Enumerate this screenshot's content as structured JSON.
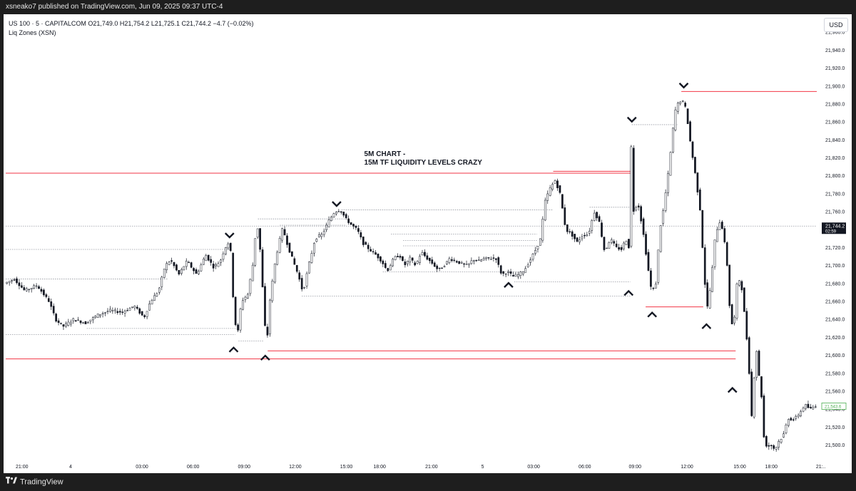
{
  "header": {
    "published": "xsneako7 published on TradingView.com, Jun 09, 2025 09:37 UTC-4"
  },
  "legend": {
    "symbol_line": "US 100 · 5 · CAPITALCOM  O21,749.0  H21,754.2  L21,725.1  C21,744.2  −4.7 (−0.02%)",
    "indicator": "Liq Zones (XSN)"
  },
  "currency_button": "USD",
  "footer": {
    "brand": "TradingView"
  },
  "colors": {
    "candle": "#131722",
    "liquidity_line": "#f23645",
    "dotted_level": "#9598a1",
    "price_tag_bg": "#131722",
    "last_tag_border": "#4caf50",
    "last_tag_text": "#4caf50"
  },
  "chart_data": {
    "type": "candlestick",
    "symbol": "US 100",
    "timeframe": "5",
    "exchange": "CAPITALCOM",
    "ylim": [
      21483,
      21980
    ],
    "y_ticks": [
      21500,
      21520,
      21540,
      21560,
      21580,
      21600,
      21620,
      21640,
      21660,
      21680,
      21700,
      21720,
      21740,
      21760,
      21780,
      21800,
      21820,
      21840,
      21860,
      21880,
      21900,
      21920,
      21940,
      21960
    ],
    "y_tick_labels": [
      "21,500.0",
      "21,520.0",
      "21,540.0",
      "21,560.0",
      "21,580.0",
      "21,600.0",
      "21,620.0",
      "21,640.0",
      "21,660.0",
      "21,680.0",
      "21,700.0",
      "21,720.0",
      "21,740.0",
      "21,760.0",
      "21,780.0",
      "21,800.0",
      "21,820.0",
      "21,840.0",
      "21,860.0",
      "21,880.0",
      "21,900.0",
      "21,920.0",
      "21,940.0",
      "21,960.0"
    ],
    "x_ticks": [
      {
        "label": "21:00",
        "t": 0.02
      },
      {
        "label": "4",
        "t": 0.08
      },
      {
        "label": "03:00",
        "t": 0.168
      },
      {
        "label": "06:00",
        "t": 0.231
      },
      {
        "label": "09:00",
        "t": 0.294
      },
      {
        "label": "12:00",
        "t": 0.357
      },
      {
        "label": "15:00",
        "t": 0.42
      },
      {
        "label": "18:00",
        "t": 0.461
      },
      {
        "label": "21:00",
        "t": 0.525
      },
      {
        "label": "5",
        "t": 0.588
      },
      {
        "label": "03:00",
        "t": 0.651
      },
      {
        "label": "06:00",
        "t": 0.714
      },
      {
        "label": "09:00",
        "t": 0.776
      },
      {
        "label": "12:00",
        "t": 0.84
      },
      {
        "label": "15:00",
        "t": 0.905
      },
      {
        "label": "18:00",
        "t": 0.944
      },
      {
        "label": "21:..",
        "t": 1.005
      }
    ],
    "price_path": [
      [
        0.0,
        21680
      ],
      [
        0.012,
        21685
      ],
      [
        0.025,
        21672
      ],
      [
        0.04,
        21678
      ],
      [
        0.055,
        21660
      ],
      [
        0.063,
        21640
      ],
      [
        0.072,
        21632
      ],
      [
        0.085,
        21640
      ],
      [
        0.1,
        21636
      ],
      [
        0.115,
        21645
      ],
      [
        0.13,
        21650
      ],
      [
        0.145,
        21648
      ],
      [
        0.16,
        21655
      ],
      [
        0.172,
        21642
      ],
      [
        0.18,
        21660
      ],
      [
        0.19,
        21672
      ],
      [
        0.198,
        21700
      ],
      [
        0.205,
        21706
      ],
      [
        0.215,
        21690
      ],
      [
        0.225,
        21705
      ],
      [
        0.237,
        21690
      ],
      [
        0.248,
        21712
      ],
      [
        0.258,
        21698
      ],
      [
        0.266,
        21705
      ],
      [
        0.272,
        21720
      ],
      [
        0.278,
        21728
      ],
      [
        0.283,
        21647
      ],
      [
        0.287,
        21620
      ],
      [
        0.292,
        21660
      ],
      [
        0.3,
        21668
      ],
      [
        0.306,
        21700
      ],
      [
        0.311,
        21750
      ],
      [
        0.315,
        21720
      ],
      [
        0.32,
        21650
      ],
      [
        0.323,
        21606
      ],
      [
        0.327,
        21660
      ],
      [
        0.333,
        21700
      ],
      [
        0.338,
        21724
      ],
      [
        0.343,
        21742
      ],
      [
        0.35,
        21720
      ],
      [
        0.356,
        21705
      ],
      [
        0.362,
        21690
      ],
      [
        0.368,
        21670
      ],
      [
        0.375,
        21700
      ],
      [
        0.383,
        21730
      ],
      [
        0.392,
        21735
      ],
      [
        0.4,
        21750
      ],
      [
        0.407,
        21760
      ],
      [
        0.414,
        21762
      ],
      [
        0.421,
        21752
      ],
      [
        0.428,
        21745
      ],
      [
        0.435,
        21740
      ],
      [
        0.442,
        21725
      ],
      [
        0.45,
        21718
      ],
      [
        0.458,
        21712
      ],
      [
        0.465,
        21705
      ],
      [
        0.472,
        21694
      ],
      [
        0.48,
        21708
      ],
      [
        0.487,
        21712
      ],
      [
        0.493,
        21700
      ],
      [
        0.5,
        21708
      ],
      [
        0.507,
        21700
      ],
      [
        0.514,
        21715
      ],
      [
        0.521,
        21708
      ],
      [
        0.528,
        21702
      ],
      [
        0.535,
        21695
      ],
      [
        0.542,
        21700
      ],
      [
        0.549,
        21708
      ],
      [
        0.556,
        21705
      ],
      [
        0.564,
        21702
      ],
      [
        0.571,
        21700
      ],
      [
        0.578,
        21707
      ],
      [
        0.585,
        21705
      ],
      [
        0.592,
        21708
      ],
      [
        0.599,
        21708
      ],
      [
        0.606,
        21708
      ],
      [
        0.613,
        21690
      ],
      [
        0.62,
        21693
      ],
      [
        0.627,
        21688
      ],
      [
        0.634,
        21690
      ],
      [
        0.641,
        21695
      ],
      [
        0.648,
        21706
      ],
      [
        0.655,
        21718
      ],
      [
        0.661,
        21730
      ],
      [
        0.666,
        21770
      ],
      [
        0.672,
        21785
      ],
      [
        0.679,
        21795
      ],
      [
        0.685,
        21780
      ],
      [
        0.692,
        21740
      ],
      [
        0.699,
        21735
      ],
      [
        0.706,
        21726
      ],
      [
        0.713,
        21734
      ],
      [
        0.72,
        21735
      ],
      [
        0.727,
        21760
      ],
      [
        0.733,
        21750
      ],
      [
        0.74,
        21715
      ],
      [
        0.747,
        21730
      ],
      [
        0.754,
        21720
      ],
      [
        0.761,
        21718
      ],
      [
        0.766,
        21730
      ],
      [
        0.77,
        21720
      ],
      [
        0.772,
        21855
      ],
      [
        0.775,
        21760
      ],
      [
        0.781,
        21770
      ],
      [
        0.787,
        21740
      ],
      [
        0.793,
        21700
      ],
      [
        0.798,
        21670
      ],
      [
        0.803,
        21680
      ],
      [
        0.808,
        21740
      ],
      [
        0.812,
        21760
      ],
      [
        0.818,
        21800
      ],
      [
        0.823,
        21840
      ],
      [
        0.826,
        21870
      ],
      [
        0.83,
        21880
      ],
      [
        0.835,
        21885
      ],
      [
        0.84,
        21875
      ],
      [
        0.846,
        21835
      ],
      [
        0.852,
        21800
      ],
      [
        0.858,
        21760
      ],
      [
        0.862,
        21700
      ],
      [
        0.866,
        21650
      ],
      [
        0.871,
        21680
      ],
      [
        0.876,
        21730
      ],
      [
        0.881,
        21750
      ],
      [
        0.886,
        21740
      ],
      [
        0.891,
        21700
      ],
      [
        0.895,
        21640
      ],
      [
        0.899,
        21630
      ],
      [
        0.904,
        21690
      ],
      [
        0.909,
        21675
      ],
      [
        0.913,
        21640
      ],
      [
        0.917,
        21600
      ],
      [
        0.922,
        21520
      ],
      [
        0.926,
        21620
      ],
      [
        0.929,
        21585
      ],
      [
        0.933,
        21560
      ],
      [
        0.936,
        21510
      ],
      [
        0.94,
        21498
      ],
      [
        0.945,
        21500
      ],
      [
        0.95,
        21495
      ],
      [
        0.955,
        21505
      ],
      [
        0.96,
        21510
      ],
      [
        0.966,
        21530
      ],
      [
        0.973,
        21528
      ],
      [
        0.98,
        21535
      ],
      [
        0.987,
        21545
      ],
      [
        0.993,
        21540
      ],
      [
        1.0,
        21544
      ]
    ],
    "liquidity_lines": [
      {
        "price": 21803,
        "t_start": 0.0,
        "t_end": 0.77
      },
      {
        "price": 21805,
        "t_start": 0.675,
        "t_end": 0.77
      },
      {
        "price": 21596,
        "t_start": 0.0,
        "t_end": 0.9
      },
      {
        "price": 21605,
        "t_start": 0.323,
        "t_end": 0.9
      },
      {
        "price": 21654,
        "t_start": 0.789,
        "t_end": 0.86
      },
      {
        "price": 21894,
        "t_start": 0.833,
        "t_end": 1.0
      }
    ],
    "dotted_levels": [
      {
        "price": 21718,
        "t_start": 0.0,
        "t_end": 0.278
      },
      {
        "price": 21623,
        "t_start": 0.0,
        "t_end": 0.283
      },
      {
        "price": 21630,
        "t_start": 0.1,
        "t_end": 0.285
      },
      {
        "price": 21685,
        "t_start": 0.0,
        "t_end": 0.2
      },
      {
        "price": 21752,
        "t_start": 0.311,
        "t_end": 0.42
      },
      {
        "price": 21745,
        "t_start": 0.338,
        "t_end": 0.42
      },
      {
        "price": 21762,
        "t_start": 0.414,
        "t_end": 0.675
      },
      {
        "price": 21735,
        "t_start": 0.475,
        "t_end": 0.655
      },
      {
        "price": 21728,
        "t_start": 0.49,
        "t_end": 0.655
      },
      {
        "price": 21722,
        "t_start": 0.49,
        "t_end": 0.655
      },
      {
        "price": 21693,
        "t_start": 0.465,
        "t_end": 0.64
      },
      {
        "price": 21666,
        "t_start": 0.365,
        "t_end": 0.77
      },
      {
        "price": 21682,
        "t_start": 0.627,
        "t_end": 0.77
      },
      {
        "price": 21765,
        "t_start": 0.72,
        "t_end": 0.772
      },
      {
        "price": 21857,
        "t_start": 0.772,
        "t_end": 0.828
      },
      {
        "price": 21616,
        "t_start": 0.287,
        "t_end": 0.318
      },
      {
        "price": 21744,
        "t_start": 0.0,
        "t_end": 1.0
      }
    ],
    "markers": [
      {
        "kind": "high",
        "t": 0.276,
        "price": 21733
      },
      {
        "kind": "low",
        "t": 0.281,
        "price": 21607
      },
      {
        "kind": "low",
        "t": 0.32,
        "price": 21598
      },
      {
        "kind": "high",
        "t": 0.408,
        "price": 21768
      },
      {
        "kind": "low",
        "t": 0.62,
        "price": 21679
      },
      {
        "kind": "high",
        "t": 0.772,
        "price": 21862
      },
      {
        "kind": "low",
        "t": 0.768,
        "price": 21670
      },
      {
        "kind": "low",
        "t": 0.797,
        "price": 21646
      },
      {
        "kind": "high",
        "t": 0.836,
        "price": 21900
      },
      {
        "kind": "low",
        "t": 0.864,
        "price": 21633
      },
      {
        "kind": "low",
        "t": 0.896,
        "price": 21562
      }
    ],
    "annotation": {
      "line1": "5M CHART -",
      "line2": "15M TF LIQUIDITY LEVELS CRAZY",
      "t": 0.442,
      "price": 21822
    },
    "price_tags": [
      {
        "value": "21,744.2",
        "sub": "02:59",
        "price": 21744,
        "style": "dark"
      },
      {
        "value": "21,543.6",
        "price": 21543,
        "style": "outline"
      }
    ]
  }
}
